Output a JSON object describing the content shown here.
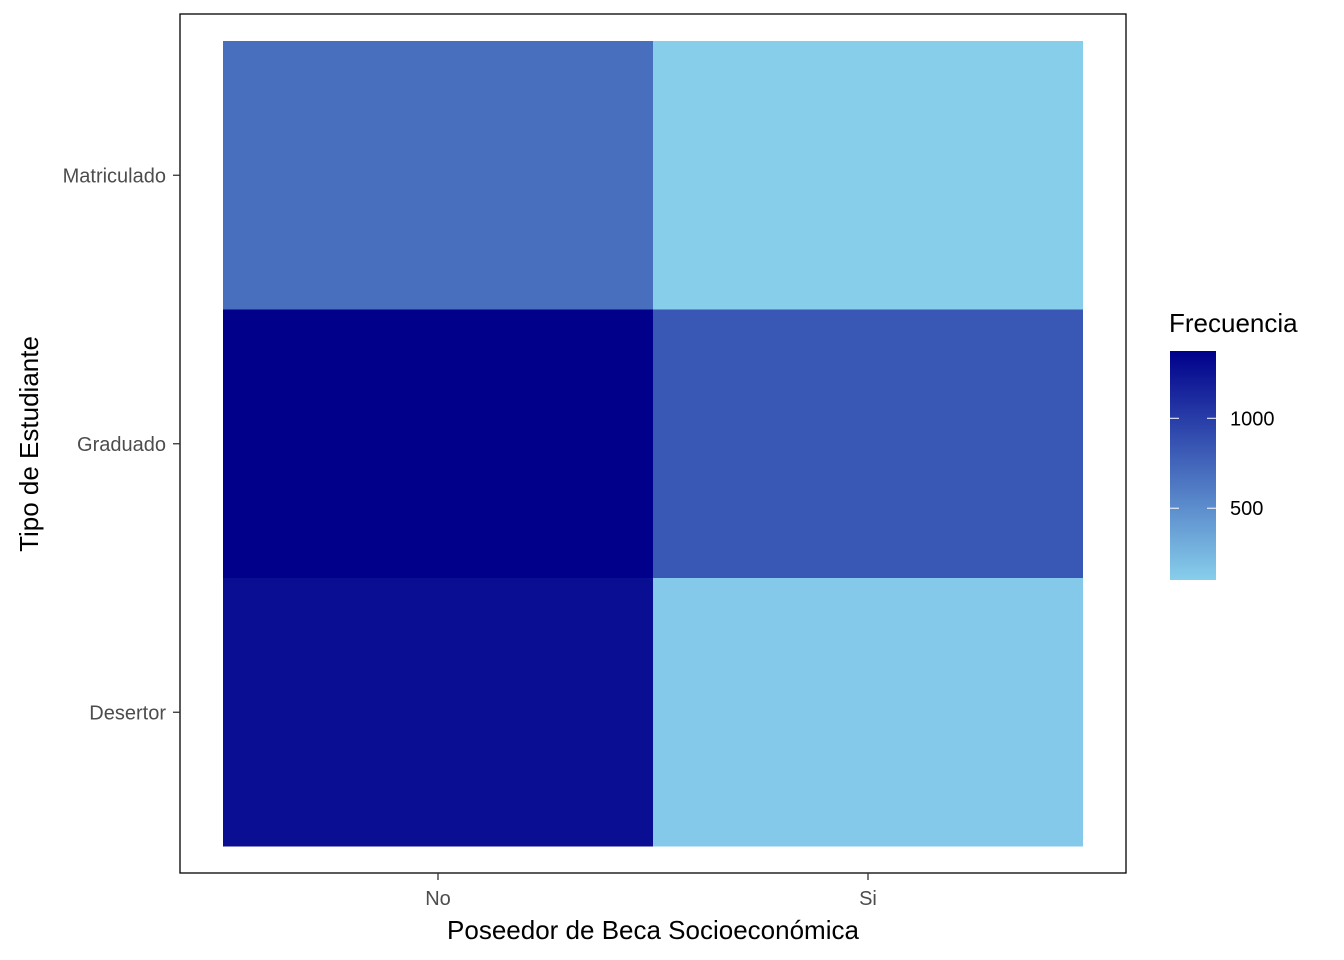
{
  "chart_data": {
    "type": "heatmap",
    "x_categories": [
      "No",
      "Si"
    ],
    "y_categories": [
      "Desertor",
      "Graduado",
      "Matriculado"
    ],
    "cells": [
      {
        "x": "No",
        "y": "Desertor",
        "value": 1287
      },
      {
        "x": "Si",
        "y": "Desertor",
        "value": 134
      },
      {
        "x": "No",
        "y": "Graduado",
        "value": 1374
      },
      {
        "x": "Si",
        "y": "Graduado",
        "value": 835
      },
      {
        "x": "No",
        "y": "Matriculado",
        "value": 693
      },
      {
        "x": "Si",
        "y": "Matriculado",
        "value": 101
      }
    ],
    "xlabel": "Poseedor de Beca Socioeconómica",
    "ylabel": "Tipo de Estudiante",
    "legend": {
      "title": "Frecuencia",
      "placement": "right",
      "ticks": [
        500,
        1000
      ],
      "min": 101,
      "max": 1374,
      "low_color": "#87CEEB",
      "high_color": "#00008B"
    },
    "panel_border": true,
    "grid": false
  }
}
